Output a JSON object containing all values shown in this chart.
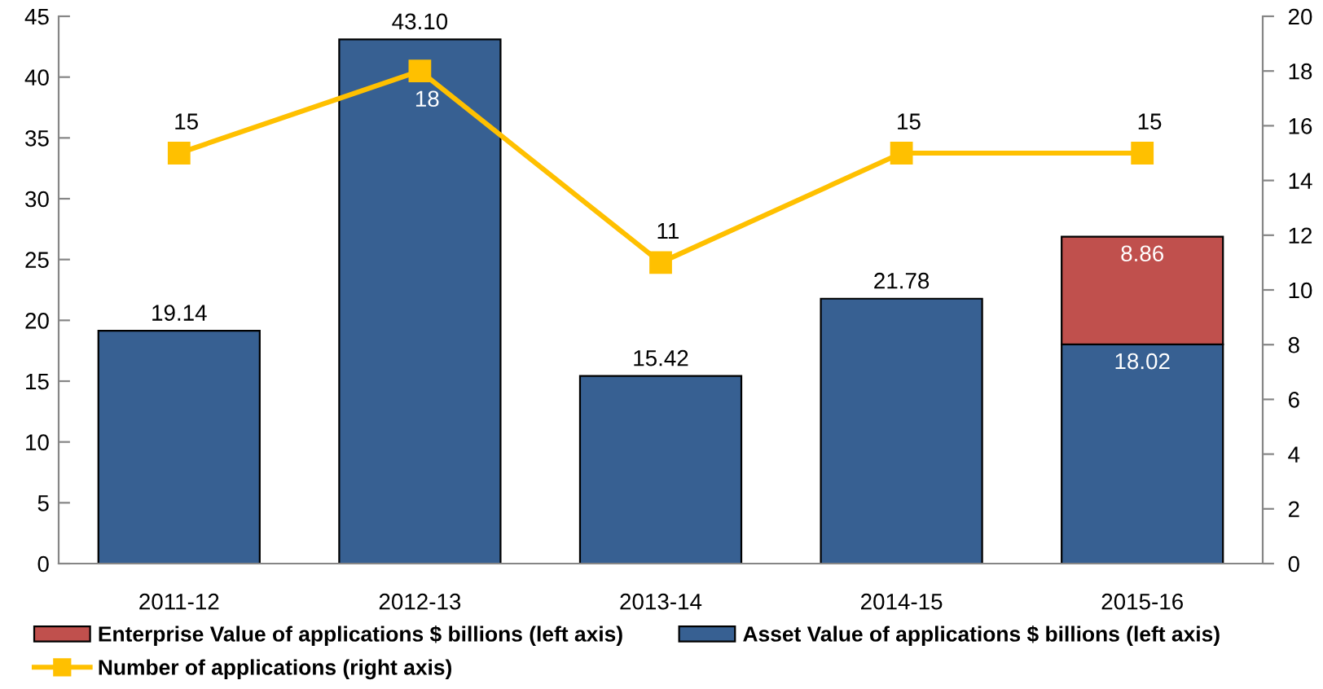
{
  "chart_data": {
    "type": "bar",
    "stacked": true,
    "categories": [
      "2011-12",
      "2012-13",
      "2013-14",
      "2014-15",
      "2015-16"
    ],
    "series": [
      {
        "name": "Asset Value of applications $ billions (left axis)",
        "color": "#376092",
        "values": [
          19.14,
          43.1,
          15.42,
          21.78,
          18.02
        ],
        "value_labels": [
          "19.14",
          "43.10",
          "15.42",
          "21.78",
          "18.02"
        ]
      },
      {
        "name": "Enterprise Value of applications $ billions (left axis)",
        "color": "#C0504D",
        "values": [
          null,
          null,
          null,
          null,
          8.86
        ],
        "value_labels": [
          null,
          null,
          null,
          null,
          "8.86"
        ]
      },
      {
        "name": "Number of applications (right axis)",
        "type": "line",
        "axis": "y2",
        "color": "#FFC000",
        "marker": "square",
        "line_style": "solid",
        "values": [
          15,
          18,
          11,
          15,
          15
        ],
        "value_labels": [
          "15",
          "18",
          "11",
          "15",
          "15"
        ]
      }
    ],
    "ylim": [
      0,
      45
    ],
    "yticks": [
      0,
      5,
      10,
      15,
      20,
      25,
      30,
      35,
      40,
      45
    ],
    "y2lim": [
      0,
      20
    ],
    "y2ticks": [
      0,
      2,
      4,
      6,
      8,
      10,
      12,
      14,
      16,
      18,
      20
    ],
    "legend": "bottom",
    "grid": false
  }
}
